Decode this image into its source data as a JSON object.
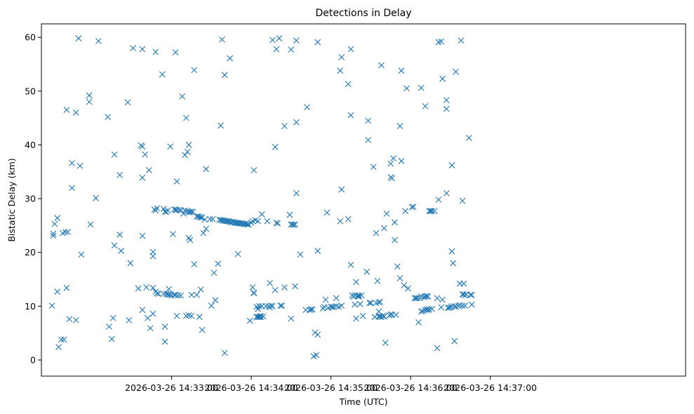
{
  "chart_data": {
    "type": "scatter",
    "title": "Detections in Delay",
    "xlabel": "Time (UTC)",
    "ylabel": "Bistatic Delay (km)",
    "marker": "x",
    "color": "#1f77b4",
    "x_unit": "seconds since 2026-03-26 14:32:00",
    "xlim": [
      -38,
      447
    ],
    "ylim": [
      -3,
      62.5
    ],
    "grid": false,
    "x_ticks": [
      {
        "value": 60,
        "label": "2026-03-26 14:33:00"
      },
      {
        "value": 120,
        "label": "2026-03-26 14:34:00"
      },
      {
        "value": 180,
        "label": "2026-03-26 14:35:00"
      },
      {
        "value": 240,
        "label": "2026-03-26 14:36:00"
      },
      {
        "value": 300,
        "label": "2026-03-26 14:37:00"
      }
    ],
    "y_ticks": [
      {
        "value": 0,
        "label": "0"
      },
      {
        "value": 10,
        "label": "10"
      },
      {
        "value": 20,
        "label": "20"
      },
      {
        "value": 30,
        "label": "30"
      },
      {
        "value": 40,
        "label": "40"
      },
      {
        "value": 50,
        "label": "50"
      },
      {
        "value": 60,
        "label": "60"
      }
    ],
    "points": [
      [
        -30,
        10.1
      ],
      [
        -29,
        23.5
      ],
      [
        -29,
        23.1
      ],
      [
        -28,
        25.3
      ],
      [
        -26,
        26.4
      ],
      [
        -26,
        12.7
      ],
      [
        -25,
        2.4
      ],
      [
        -23,
        3.8
      ],
      [
        -22,
        23.6
      ],
      [
        -21,
        3.8
      ],
      [
        -20,
        23.8
      ],
      [
        -19,
        46.5
      ],
      [
        -19,
        13.4
      ],
      [
        -18,
        23.8
      ],
      [
        -17,
        7.6
      ],
      [
        -15,
        36.6
      ],
      [
        -15,
        32.0
      ],
      [
        -12,
        46.0
      ],
      [
        -12,
        7.4
      ],
      [
        -10,
        59.8
      ],
      [
        -9,
        36.1
      ],
      [
        -8,
        19.6
      ],
      [
        -2,
        48.0
      ],
      [
        -2,
        49.2
      ],
      [
        -1,
        25.2
      ],
      [
        3,
        30.1
      ],
      [
        5,
        59.3
      ],
      [
        12,
        45.2
      ],
      [
        13,
        6.2
      ],
      [
        15,
        3.9
      ],
      [
        16,
        7.8
      ],
      [
        17,
        38.2
      ],
      [
        17,
        21.3
      ],
      [
        21,
        34.4
      ],
      [
        21,
        23.3
      ],
      [
        22,
        20.3
      ],
      [
        27,
        47.9
      ],
      [
        28,
        7.4
      ],
      [
        29,
        18.0
      ],
      [
        31,
        58.0
      ],
      [
        35,
        13.3
      ],
      [
        37,
        39.9
      ],
      [
        38,
        39.7
      ],
      [
        38,
        57.8
      ],
      [
        38,
        33.9
      ],
      [
        38,
        23.1
      ],
      [
        38,
        9.3
      ],
      [
        40,
        38.2
      ],
      [
        41,
        13.5
      ],
      [
        42,
        7.8
      ],
      [
        43,
        35.3
      ],
      [
        44,
        5.9
      ],
      [
        46,
        20.1
      ],
      [
        46,
        19.3
      ],
      [
        46,
        8.6
      ],
      [
        46,
        13.4
      ],
      [
        47,
        28.0
      ],
      [
        48,
        27.8
      ],
      [
        48,
        57.3
      ],
      [
        48,
        12.7
      ],
      [
        49,
        28.2
      ],
      [
        49,
        12.4
      ],
      [
        50,
        12.3
      ],
      [
        53,
        53.1
      ],
      [
        54,
        28.1
      ],
      [
        54,
        12.3
      ],
      [
        55,
        27.6
      ],
      [
        55,
        6.2
      ],
      [
        55,
        3.4
      ],
      [
        56,
        12.3
      ],
      [
        56,
        27.5
      ],
      [
        57,
        27.8
      ],
      [
        57,
        12.2
      ],
      [
        58,
        12.1
      ],
      [
        58,
        13.2
      ],
      [
        59,
        39.7
      ],
      [
        59,
        12.2
      ],
      [
        60,
        12.0
      ],
      [
        61,
        23.4
      ],
      [
        62,
        12.1
      ],
      [
        62,
        28.0
      ],
      [
        63,
        27.9
      ],
      [
        63,
        57.2
      ],
      [
        63,
        12.1
      ],
      [
        64,
        33.2
      ],
      [
        64,
        8.2
      ],
      [
        64,
        27.9
      ],
      [
        65,
        12.0
      ],
      [
        66,
        27.9
      ],
      [
        67,
        12.0
      ],
      [
        67,
        27.8
      ],
      [
        68,
        49.0
      ],
      [
        69,
        27.2
      ],
      [
        70,
        27.8
      ],
      [
        70,
        38.1
      ],
      [
        71,
        45.0
      ],
      [
        71,
        8.2
      ],
      [
        72,
        27.7
      ],
      [
        72,
        38.7
      ],
      [
        73,
        40.0
      ],
      [
        73,
        22.7
      ],
      [
        73,
        27.5
      ],
      [
        73,
        8.3
      ],
      [
        74,
        22.3
      ],
      [
        74,
        27.5
      ],
      [
        75,
        27.6
      ],
      [
        75,
        8.2
      ],
      [
        75,
        12.1
      ],
      [
        76,
        27.5
      ],
      [
        77,
        17.8
      ],
      [
        77,
        53.9
      ],
      [
        79,
        12.1
      ],
      [
        79,
        26.7
      ],
      [
        80,
        26.7
      ],
      [
        81,
        26.6
      ],
      [
        81,
        8.0
      ],
      [
        82,
        13.1
      ],
      [
        82,
        26.5
      ],
      [
        83,
        5.6
      ],
      [
        83,
        26.5
      ],
      [
        84,
        23.6
      ],
      [
        85,
        26.1
      ],
      [
        86,
        35.5
      ],
      [
        86,
        24.4
      ],
      [
        89,
        26.2
      ],
      [
        90,
        10.1
      ],
      [
        91,
        26.2
      ],
      [
        92,
        16.2
      ],
      [
        93,
        11.1
      ],
      [
        95,
        17.9
      ],
      [
        96,
        26.1
      ],
      [
        97,
        26.0
      ],
      [
        97,
        43.6
      ],
      [
        98,
        26.0
      ],
      [
        98,
        59.6
      ],
      [
        99,
        25.9
      ],
      [
        100,
        25.9
      ],
      [
        100,
        1.3
      ],
      [
        100,
        53.0
      ],
      [
        101,
        25.8
      ],
      [
        102,
        25.8
      ],
      [
        103,
        25.8
      ],
      [
        104,
        25.7
      ],
      [
        104,
        56.1
      ],
      [
        105,
        25.6
      ],
      [
        106,
        25.7
      ],
      [
        107,
        25.6
      ],
      [
        108,
        25.5
      ],
      [
        109,
        25.5
      ],
      [
        110,
        19.7
      ],
      [
        110,
        25.5
      ],
      [
        111,
        25.4
      ],
      [
        112,
        25.4
      ],
      [
        113,
        25.4
      ],
      [
        114,
        25.3
      ],
      [
        115,
        25.3
      ],
      [
        116,
        25.3
      ],
      [
        117,
        25.2
      ],
      [
        118,
        25.2
      ],
      [
        119,
        7.3
      ],
      [
        120,
        25.5
      ],
      [
        121,
        25.8
      ],
      [
        121,
        13.5
      ],
      [
        122,
        35.3
      ],
      [
        122,
        12.5
      ],
      [
        122,
        12.4
      ],
      [
        123,
        26.0
      ],
      [
        124,
        9.9
      ],
      [
        124,
        8.0
      ],
      [
        125,
        8.0
      ],
      [
        125,
        9.5
      ],
      [
        125,
        25.8
      ],
      [
        126,
        8.0
      ],
      [
        126,
        10.0
      ],
      [
        127,
        8.2
      ],
      [
        127,
        8.0
      ],
      [
        128,
        10.0
      ],
      [
        128,
        27.1
      ],
      [
        129,
        8.1
      ],
      [
        131,
        10.0
      ],
      [
        132,
        25.8
      ],
      [
        133,
        10.0
      ],
      [
        134,
        9.8
      ],
      [
        134,
        14.3
      ],
      [
        135,
        10.1
      ],
      [
        136,
        10.0
      ],
      [
        136,
        59.5
      ],
      [
        138,
        13.0
      ],
      [
        138,
        39.6
      ],
      [
        139,
        57.8
      ],
      [
        139,
        25.5
      ],
      [
        140,
        25.4
      ],
      [
        141,
        59.8
      ],
      [
        142,
        10.1
      ],
      [
        143,
        10.1
      ],
      [
        145,
        43.5
      ],
      [
        145,
        13.5
      ],
      [
        149,
        27.0
      ],
      [
        150,
        7.7
      ],
      [
        150,
        57.7
      ],
      [
        150,
        25.2
      ],
      [
        151,
        25.2
      ],
      [
        152,
        25.1
      ],
      [
        153,
        25.2
      ],
      [
        153,
        13.7
      ],
      [
        154,
        59.4
      ],
      [
        154,
        44.2
      ],
      [
        154,
        31.0
      ],
      [
        157,
        19.6
      ],
      [
        161,
        9.3
      ],
      [
        162,
        47.0
      ],
      [
        164,
        9.3
      ],
      [
        165,
        9.4
      ],
      [
        166,
        9.4
      ],
      [
        167,
        0.7
      ],
      [
        168,
        5.1
      ],
      [
        169,
        0.9
      ],
      [
        170,
        4.7
      ],
      [
        170,
        20.3
      ],
      [
        170,
        59.1
      ],
      [
        174,
        9.6
      ],
      [
        175,
        9.9
      ],
      [
        176,
        11.2
      ],
      [
        177,
        27.4
      ],
      [
        178,
        9.7
      ],
      [
        180,
        9.9
      ],
      [
        181,
        9.8
      ],
      [
        182,
        9.9
      ],
      [
        184,
        10.0
      ],
      [
        184,
        11.5
      ],
      [
        186,
        9.9
      ],
      [
        187,
        25.8
      ],
      [
        187,
        53.8
      ],
      [
        188,
        56.3
      ],
      [
        188,
        10.1
      ],
      [
        188,
        31.7
      ],
      [
        193,
        26.2
      ],
      [
        193,
        51.3
      ],
      [
        195,
        17.7
      ],
      [
        195,
        45.5
      ],
      [
        195,
        57.8
      ],
      [
        196,
        12.0
      ],
      [
        197,
        11.8
      ],
      [
        198,
        12.0
      ],
      [
        198,
        10.3
      ],
      [
        199,
        7.7
      ],
      [
        199,
        14.5
      ],
      [
        200,
        11.9
      ],
      [
        201,
        12.0
      ],
      [
        201,
        11.8
      ],
      [
        202,
        10.4
      ],
      [
        203,
        12.0
      ],
      [
        204,
        8.2
      ],
      [
        207,
        16.4
      ],
      [
        208,
        44.5
      ],
      [
        208,
        40.9
      ],
      [
        209,
        10.6
      ],
      [
        210,
        10.6
      ],
      [
        212,
        35.9
      ],
      [
        213,
        8.0
      ],
      [
        214,
        10.6
      ],
      [
        214,
        23.6
      ],
      [
        215,
        14.7
      ],
      [
        216,
        10.7
      ],
      [
        216,
        9.0
      ],
      [
        216,
        8.1
      ],
      [
        217,
        10.8
      ],
      [
        217,
        8.1
      ],
      [
        218,
        54.8
      ],
      [
        218,
        8.0
      ],
      [
        219,
        8.2
      ],
      [
        220,
        8.1
      ],
      [
        220,
        24.5
      ],
      [
        221,
        3.2
      ],
      [
        222,
        27.2
      ],
      [
        224,
        8.3
      ],
      [
        225,
        36.5
      ],
      [
        225,
        8.5
      ],
      [
        225,
        34.0
      ],
      [
        226,
        8.4
      ],
      [
        226,
        33.8
      ],
      [
        227,
        37.5
      ],
      [
        228,
        22.3
      ],
      [
        228,
        25.6
      ],
      [
        229,
        8.4
      ],
      [
        230,
        17.4
      ],
      [
        232,
        15.2
      ],
      [
        232,
        43.5
      ],
      [
        233,
        53.8
      ],
      [
        233,
        37.0
      ],
      [
        235,
        13.9
      ],
      [
        236,
        27.7
      ],
      [
        237,
        50.5
      ],
      [
        238,
        13.3
      ],
      [
        241,
        28.4
      ],
      [
        242,
        28.5
      ],
      [
        243,
        11.5
      ],
      [
        244,
        11.5
      ],
      [
        245,
        11.5
      ],
      [
        246,
        7.0
      ],
      [
        247,
        11.5
      ],
      [
        248,
        50.6
      ],
      [
        248,
        11.8
      ],
      [
        248,
        9.0
      ],
      [
        249,
        9.1
      ],
      [
        250,
        11.7
      ],
      [
        251,
        11.8
      ],
      [
        251,
        47.2
      ],
      [
        251,
        9.3
      ],
      [
        252,
        11.9
      ],
      [
        252,
        9.4
      ],
      [
        253,
        11.8
      ],
      [
        253,
        9.3
      ],
      [
        254,
        27.7
      ],
      [
        254,
        9.4
      ],
      [
        255,
        27.7
      ],
      [
        256,
        27.7
      ],
      [
        256,
        9.5
      ],
      [
        256,
        27.7
      ],
      [
        258,
        27.7
      ],
      [
        260,
        11.5
      ],
      [
        260,
        2.2
      ],
      [
        261,
        29.8
      ],
      [
        261,
        59.1
      ],
      [
        263,
        59.2
      ],
      [
        263,
        9.8
      ],
      [
        264,
        52.3
      ],
      [
        264,
        11.2
      ],
      [
        267,
        31.0
      ],
      [
        267,
        48.3
      ],
      [
        267,
        46.7
      ],
      [
        268,
        9.7
      ],
      [
        269,
        9.7
      ],
      [
        270,
        9.8
      ],
      [
        271,
        10.0
      ],
      [
        271,
        36.2
      ],
      [
        271,
        20.2
      ],
      [
        272,
        18.0
      ],
      [
        273,
        3.5
      ],
      [
        273,
        10.0
      ],
      [
        274,
        9.9
      ],
      [
        274,
        53.6
      ],
      [
        276,
        10.0
      ],
      [
        277,
        10.2
      ],
      [
        277,
        14.2
      ],
      [
        278,
        59.4
      ],
      [
        279,
        10.1
      ],
      [
        279,
        12.2
      ],
      [
        279,
        29.6
      ],
      [
        280,
        12.2
      ],
      [
        280,
        14.2
      ],
      [
        281,
        12.0
      ],
      [
        281,
        10.1
      ],
      [
        282,
        12.2
      ],
      [
        284,
        41.3
      ],
      [
        285,
        12.1
      ],
      [
        286,
        10.3
      ],
      [
        286,
        12.1
      ]
    ]
  }
}
